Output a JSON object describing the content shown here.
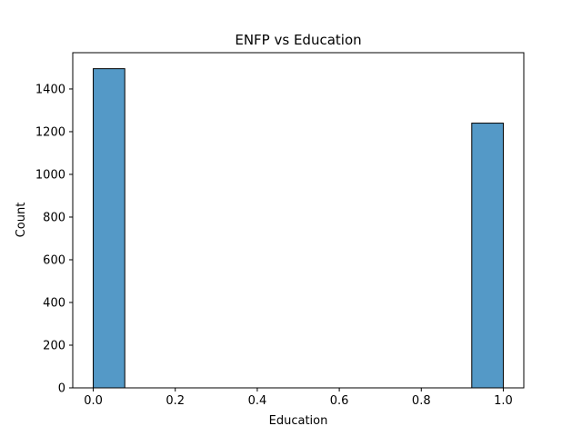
{
  "chart_data": {
    "type": "bar",
    "title": "ENFP vs Education",
    "xlabel": "Education",
    "ylabel": "Count",
    "bins": [
      {
        "x0": 0.0,
        "x1": 0.0769,
        "value": 1495
      },
      {
        "x0": 0.9231,
        "x1": 1.0,
        "value": 1240
      }
    ],
    "xlim": [
      -0.05,
      1.05
    ],
    "ylim": [
      0,
      1570
    ],
    "xticks": [
      "0.0",
      "0.2",
      "0.4",
      "0.6",
      "0.8",
      "1.0"
    ],
    "yticks": [
      "0",
      "200",
      "400",
      "600",
      "800",
      "1000",
      "1200",
      "1400"
    ],
    "grid": false,
    "colors": {
      "bar_fill": "#5499c7",
      "bar_edge": "#000000"
    }
  }
}
